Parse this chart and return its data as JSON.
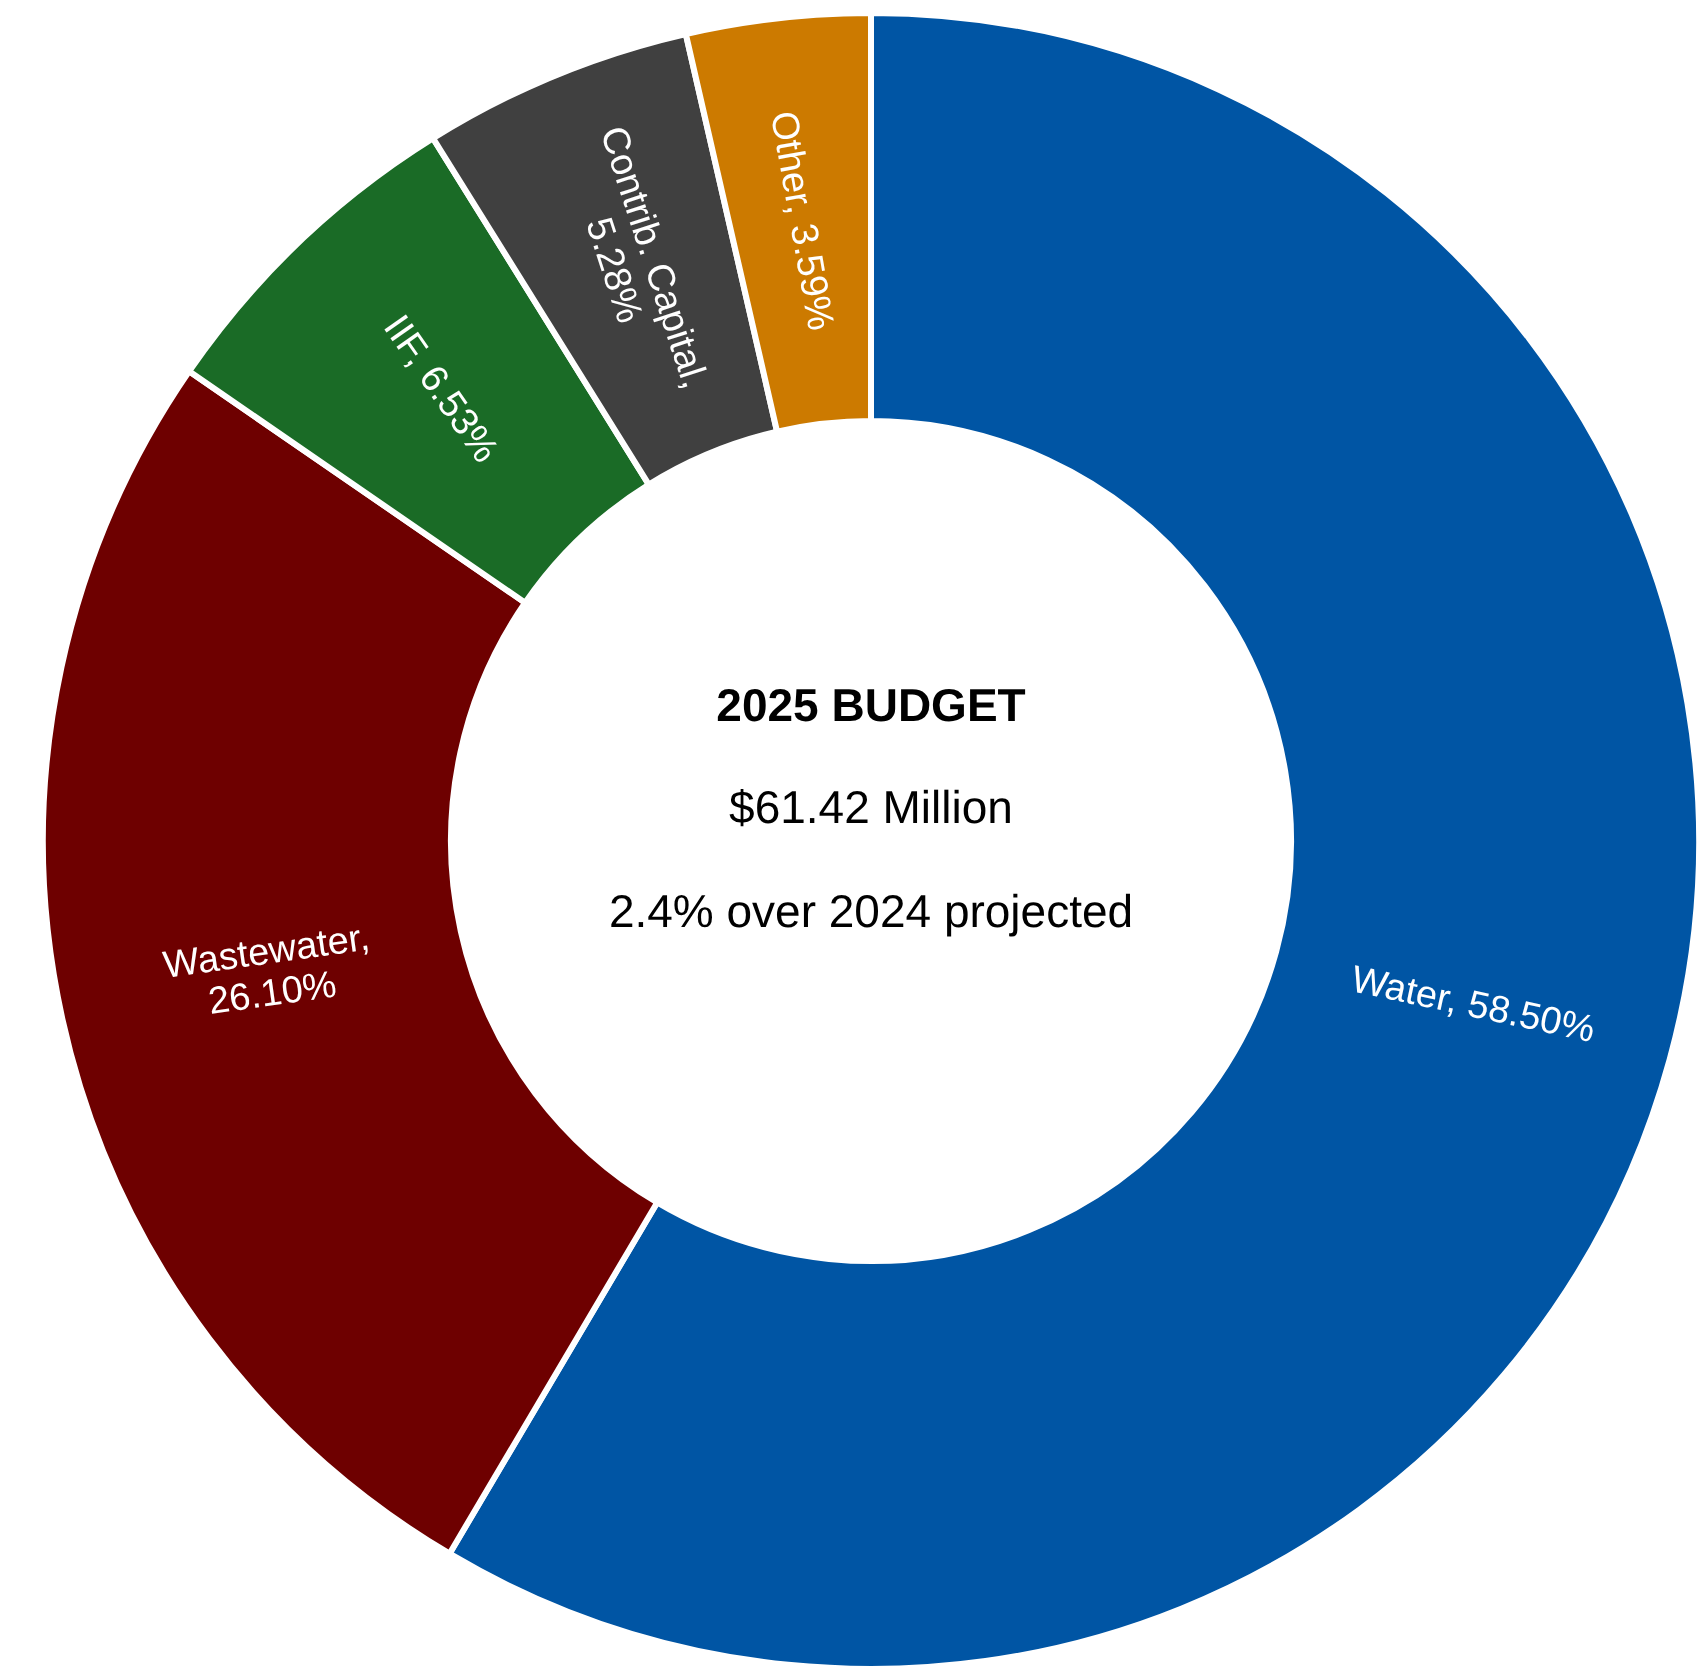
{
  "chart_data": {
    "type": "donut",
    "title": "2025 BUDGET",
    "subtitle": "$61.42 Million",
    "annotations": [
      "2.4% over 2024 projected"
    ],
    "categories": [
      "Water",
      "Wastewater",
      "IIF",
      "Contrib. Capital",
      "Other"
    ],
    "values": [
      58.5,
      26.1,
      6.53,
      5.28,
      3.59
    ],
    "colors": [
      "#0055a4",
      "#6e0000",
      "#1a6b26",
      "#404040",
      "#cc7a00"
    ],
    "value_labels": [
      ", 58.50%",
      ", 26.10%",
      ", 6.53%",
      ", 5.28%",
      ", 3.59%"
    ]
  }
}
